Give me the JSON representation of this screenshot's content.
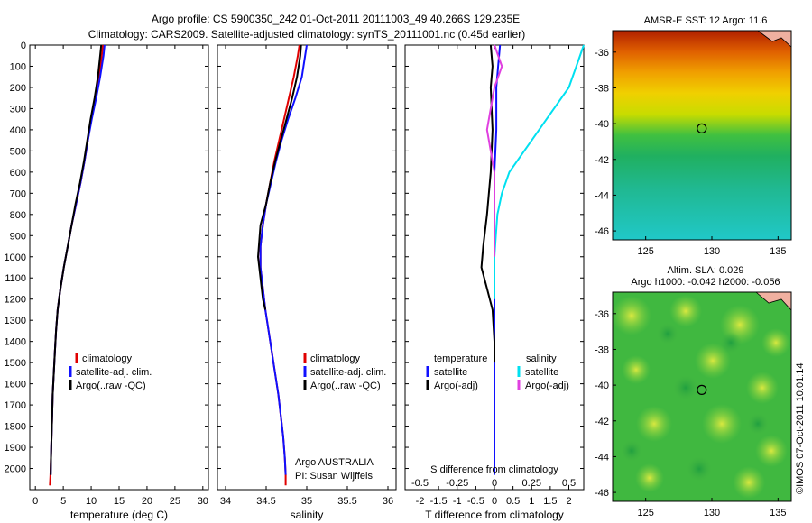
{
  "title_line1": "Argo profile: CS 5900350_242 01-Oct-2011 20111003_49 40.266S 129.235E",
  "title_line2": "Climatology: CARS2009. Satellite-adjusted climatology: synTS_20111001.nc (0.45d earlier)",
  "depth_ticks": [
    "0",
    "100",
    "200",
    "300",
    "400",
    "500",
    "600",
    "700",
    "800",
    "900",
    "1000",
    "1100",
    "1200",
    "1300",
    "1400",
    "1500",
    "1600",
    "1700",
    "1800",
    "1900",
    "2000"
  ],
  "panel1": {
    "xlabel": "temperature (deg C)",
    "xticks": [
      "0",
      "5",
      "10",
      "15",
      "20",
      "25",
      "30"
    ],
    "legend": [
      "climatology",
      "satellite-adj. clim.",
      "Argo(..raw -QC)"
    ]
  },
  "panel2": {
    "xlabel": "salinity",
    "xticks": [
      "34",
      "34.5",
      "35",
      "35.5",
      "36"
    ],
    "legend": [
      "climatology",
      "satellite-adj. clim.",
      "Argo(..raw -QC)"
    ],
    "note1": "Argo AUSTRALIA",
    "note2": "PI: Susan Wijffels"
  },
  "panel3": {
    "xlabel": "T difference from climatology",
    "xticks": [
      "-2",
      "-1.5",
      "-1",
      "-0.5",
      "0",
      "0.5",
      "1",
      "1.5",
      "2"
    ],
    "top_label": "S difference from climatology",
    "top_ticks": [
      "-0.5",
      "-0.25",
      "0",
      "0.25",
      "0.5"
    ],
    "legend_t_head": "temperature",
    "legend_s_head": "salinity",
    "legend_t": [
      "satellite",
      "Argo(-adj)"
    ],
    "legend_s": [
      "satellite",
      "Argo(-adj)"
    ]
  },
  "map1": {
    "title": "AMSR-E SST: 12 Argo: 11.6",
    "yticks": [
      "-36",
      "-38",
      "-40",
      "-42",
      "-44",
      "-46"
    ],
    "xticks": [
      "125",
      "130",
      "135"
    ]
  },
  "map2": {
    "title1": "Altim. SLA: 0.029",
    "title2": "Argo h1000: -0.042 h2000: -0.056",
    "yticks": [
      "-36",
      "-38",
      "-40",
      "-42",
      "-44",
      "-46"
    ],
    "xticks": [
      "125",
      "130",
      "135"
    ]
  },
  "credit": "©IMOS 07-Oct-2011 10:01:14",
  "colors": {
    "climatology": "#e00000",
    "satellite": "#1010ff",
    "argo": "#000000",
    "sat_salinity": "#00e0f0",
    "argo_salinity": "#e040e0"
  },
  "chart_data": [
    {
      "type": "line",
      "xlabel": "temperature (deg C)",
      "ylabel": "",
      "xlim": [
        -1,
        31
      ],
      "ylim": [
        2100,
        0
      ],
      "series": [
        {
          "name": "climatology",
          "x": [
            12.1,
            11.9,
            11.4,
            10.8,
            10.0,
            9.4,
            8.8,
            8.1,
            7.3,
            6.5,
            5.8,
            5.1,
            4.5,
            4.0,
            3.7,
            3.5,
            3.3,
            3.1,
            3.0,
            2.9,
            2.8,
            2.7,
            2.6
          ],
          "y": [
            0,
            50,
            150,
            250,
            350,
            450,
            550,
            650,
            750,
            850,
            950,
            1050,
            1150,
            1250,
            1350,
            1450,
            1550,
            1650,
            1750,
            1850,
            1950,
            2030,
            2080
          ]
        },
        {
          "name": "satellite-adj. clim.",
          "x": [
            12.4,
            12.2,
            11.6,
            10.9,
            10.1,
            9.4,
            8.8,
            8.1,
            7.3,
            6.5,
            5.8,
            5.1,
            4.5,
            4.0,
            3.7,
            3.5,
            3.3,
            3.1,
            3.0,
            2.9,
            2.8,
            2.75
          ],
          "y": [
            0,
            50,
            150,
            250,
            350,
            450,
            550,
            650,
            750,
            850,
            950,
            1050,
            1150,
            1250,
            1350,
            1450,
            1550,
            1650,
            1750,
            1850,
            1950,
            2030
          ]
        },
        {
          "name": "Argo(..raw -QC)",
          "x": [
            11.8,
            11.6,
            11.2,
            10.6,
            9.9,
            9.3,
            8.7,
            8.0,
            7.2,
            6.5,
            5.8,
            5.1,
            4.5,
            4.0,
            3.7,
            3.5,
            3.3,
            3.1,
            3.0,
            2.9,
            2.8,
            2.75
          ],
          "y": [
            0,
            50,
            150,
            250,
            350,
            450,
            550,
            650,
            750,
            850,
            950,
            1050,
            1150,
            1250,
            1350,
            1450,
            1550,
            1650,
            1750,
            1850,
            1950,
            2030
          ]
        }
      ]
    },
    {
      "type": "line",
      "xlabel": "salinity",
      "ylabel": "",
      "xlim": [
        33.9,
        36.1
      ],
      "ylim": [
        2100,
        0
      ],
      "series": [
        {
          "name": "climatology",
          "x": [
            34.91,
            34.89,
            34.84,
            34.78,
            34.72,
            34.66,
            34.6,
            34.55,
            34.5,
            34.46,
            34.43,
            34.43,
            34.46,
            34.49,
            34.53,
            34.57,
            34.61,
            34.65,
            34.68,
            34.71,
            34.73,
            34.74,
            34.74
          ],
          "y": [
            0,
            50,
            150,
            250,
            350,
            450,
            550,
            650,
            750,
            850,
            950,
            1050,
            1150,
            1250,
            1350,
            1450,
            1550,
            1650,
            1750,
            1850,
            1950,
            2030,
            2080
          ]
        },
        {
          "name": "satellite-adj. clim.",
          "x": [
            35.0,
            34.98,
            34.94,
            34.86,
            34.77,
            34.69,
            34.62,
            34.56,
            34.5,
            34.46,
            34.43,
            34.43,
            34.46,
            34.49,
            34.53,
            34.57,
            34.61,
            34.65,
            34.68,
            34.71,
            34.73,
            34.74
          ],
          "y": [
            0,
            50,
            150,
            250,
            350,
            450,
            550,
            650,
            750,
            850,
            950,
            1050,
            1150,
            1250,
            1350,
            1450,
            1550,
            1650,
            1750,
            1850,
            1950,
            2030
          ]
        },
        {
          "name": "Argo(..raw -QC)",
          "x": [
            34.93,
            34.92,
            34.88,
            34.82,
            34.75,
            34.68,
            34.61,
            34.55,
            34.5,
            34.43,
            34.4,
            34.43,
            34.46,
            34.49
          ],
          "y": [
            0,
            50,
            150,
            250,
            350,
            450,
            550,
            650,
            750,
            850,
            1000,
            1100,
            1200,
            1250
          ]
        }
      ]
    },
    {
      "type": "line",
      "xlabel": "T difference from climatology",
      "top_label": "S difference from climatology",
      "xlim": [
        -2.4,
        2.4
      ],
      "ylim": [
        2100,
        0
      ],
      "series": [
        {
          "name": "temperature satellite",
          "x": [
            0.15,
            0.1,
            0.05,
            0.05,
            0.0,
            0.0,
            0.0,
            0.0,
            0.0,
            0.0,
            0.0,
            0.0
          ],
          "y": [
            0,
            100,
            200,
            400,
            600,
            800,
            1000,
            1200,
            1400,
            1600,
            1800,
            2030
          ]
        },
        {
          "name": "temperature Argo(-adj)",
          "x": [
            -0.1,
            -0.05,
            -0.1,
            -0.05,
            -0.1,
            -0.2,
            -0.3,
            -0.35,
            -0.2,
            -0.05,
            0.0,
            0.0
          ],
          "y": [
            0,
            100,
            200,
            400,
            600,
            800,
            950,
            1050,
            1150,
            1250,
            1400,
            1500
          ]
        },
        {
          "name": "salinity satellite",
          "x": [
            0.6,
            0.55,
            0.5,
            0.4,
            0.3,
            0.2,
            0.1,
            0.05,
            0.02,
            0.01,
            0.0,
            0.0
          ],
          "y": [
            0,
            100,
            200,
            300,
            400,
            500,
            600,
            700,
            800,
            900,
            1000,
            1200
          ]
        },
        {
          "name": "salinity Argo(-adj)",
          "x": [
            0.0,
            0.05,
            0.0,
            -0.05,
            0.0,
            0.0,
            0.0
          ],
          "y": [
            0,
            100,
            200,
            400,
            600,
            800,
            1000
          ]
        }
      ]
    },
    {
      "type": "heatmap",
      "title": "AMSR-E SST: 12 Argo: 11.6",
      "xlim": [
        122.5,
        136
      ],
      "ylim": [
        -46.5,
        -34.8
      ],
      "argo_position": [
        129.235,
        -40.266
      ]
    },
    {
      "type": "heatmap",
      "title": "Altim. SLA: 0.029 / Argo h1000: -0.042 h2000: -0.056",
      "xlim": [
        122.5,
        136
      ],
      "ylim": [
        -46.5,
        -34.8
      ],
      "argo_position": [
        129.235,
        -40.266
      ]
    }
  ]
}
